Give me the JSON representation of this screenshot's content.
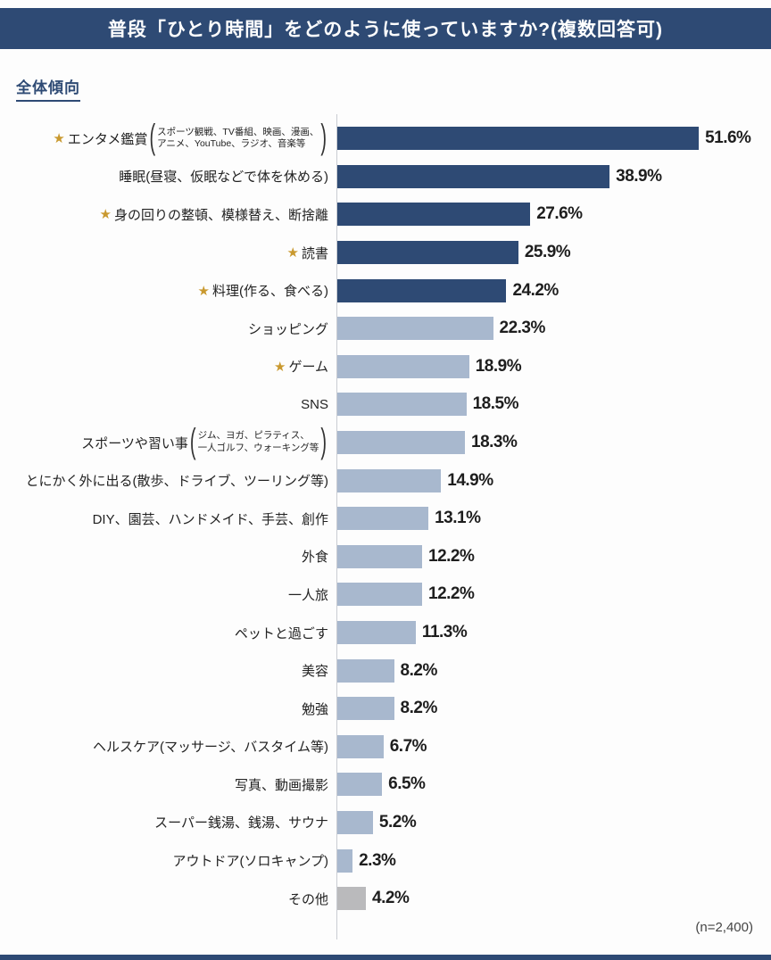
{
  "header": {
    "title": "普段「ひとり時間」をどのように使っていますか?(複数回答可)"
  },
  "section": {
    "label": "全体傾向"
  },
  "footer": {
    "sample_note": "(n=2,400)"
  },
  "colors": {
    "navy": "#2e4a74",
    "bar_dark": "#2e4a74",
    "bar_light": "#a8b8ce",
    "bar_other": "#bababc",
    "star": "#c9992f"
  },
  "chart_data": {
    "type": "bar",
    "orientation": "horizontal",
    "unit": "%",
    "xlim": [
      0,
      55
    ],
    "grid": false,
    "legend": "none",
    "title": "普段「ひとり時間」をどのように使っていますか?(複数回答可)",
    "sample_size": "n=2,400",
    "rows": [
      {
        "label": "エンタメ鑑賞",
        "star": true,
        "sub": [
          "スポーツ観戦、TV番組、映画、漫画、",
          "アニメ、YouTube、ラジオ、音楽等"
        ],
        "value": 51.6,
        "color": "dark"
      },
      {
        "label": "睡眠(昼寝、仮眠などで体を休める)",
        "star": false,
        "value": 38.9,
        "color": "dark"
      },
      {
        "label": "身の回りの整頓、模様替え、断捨離",
        "star": true,
        "value": 27.6,
        "color": "dark"
      },
      {
        "label": "読書",
        "star": true,
        "value": 25.9,
        "color": "dark"
      },
      {
        "label": "料理(作る、食べる)",
        "star": true,
        "value": 24.2,
        "color": "dark"
      },
      {
        "label": "ショッピング",
        "star": false,
        "value": 22.3,
        "color": "light"
      },
      {
        "label": "ゲーム",
        "star": true,
        "value": 18.9,
        "color": "light"
      },
      {
        "label": "SNS",
        "star": false,
        "value": 18.5,
        "color": "light"
      },
      {
        "label": "スポーツや習い事",
        "star": false,
        "sub": [
          "ジム、ヨガ、ピラティス、",
          "一人ゴルフ、ウォーキング等"
        ],
        "value": 18.3,
        "color": "light"
      },
      {
        "label": "とにかく外に出る(散歩、ドライブ、ツーリング等)",
        "star": false,
        "value": 14.9,
        "color": "light"
      },
      {
        "label": "DIY、園芸、ハンドメイド、手芸、創作",
        "star": false,
        "value": 13.1,
        "color": "light"
      },
      {
        "label": "外食",
        "star": false,
        "value": 12.2,
        "color": "light"
      },
      {
        "label": "一人旅",
        "star": false,
        "value": 12.2,
        "color": "light"
      },
      {
        "label": "ペットと過ごす",
        "star": false,
        "value": 11.3,
        "color": "light"
      },
      {
        "label": "美容",
        "star": false,
        "value": 8.2,
        "color": "light"
      },
      {
        "label": "勉強",
        "star": false,
        "value": 8.2,
        "color": "light"
      },
      {
        "label": "ヘルスケア(マッサージ、バスタイム等)",
        "star": false,
        "value": 6.7,
        "color": "light"
      },
      {
        "label": "写真、動画撮影",
        "star": false,
        "value": 6.5,
        "color": "light"
      },
      {
        "label": "スーパー銭湯、銭湯、サウナ",
        "star": false,
        "value": 5.2,
        "color": "light"
      },
      {
        "label": "アウトドア(ソロキャンプ)",
        "star": false,
        "value": 2.3,
        "color": "light"
      },
      {
        "label": "その他",
        "star": false,
        "value": 4.2,
        "color": "other"
      }
    ]
  }
}
